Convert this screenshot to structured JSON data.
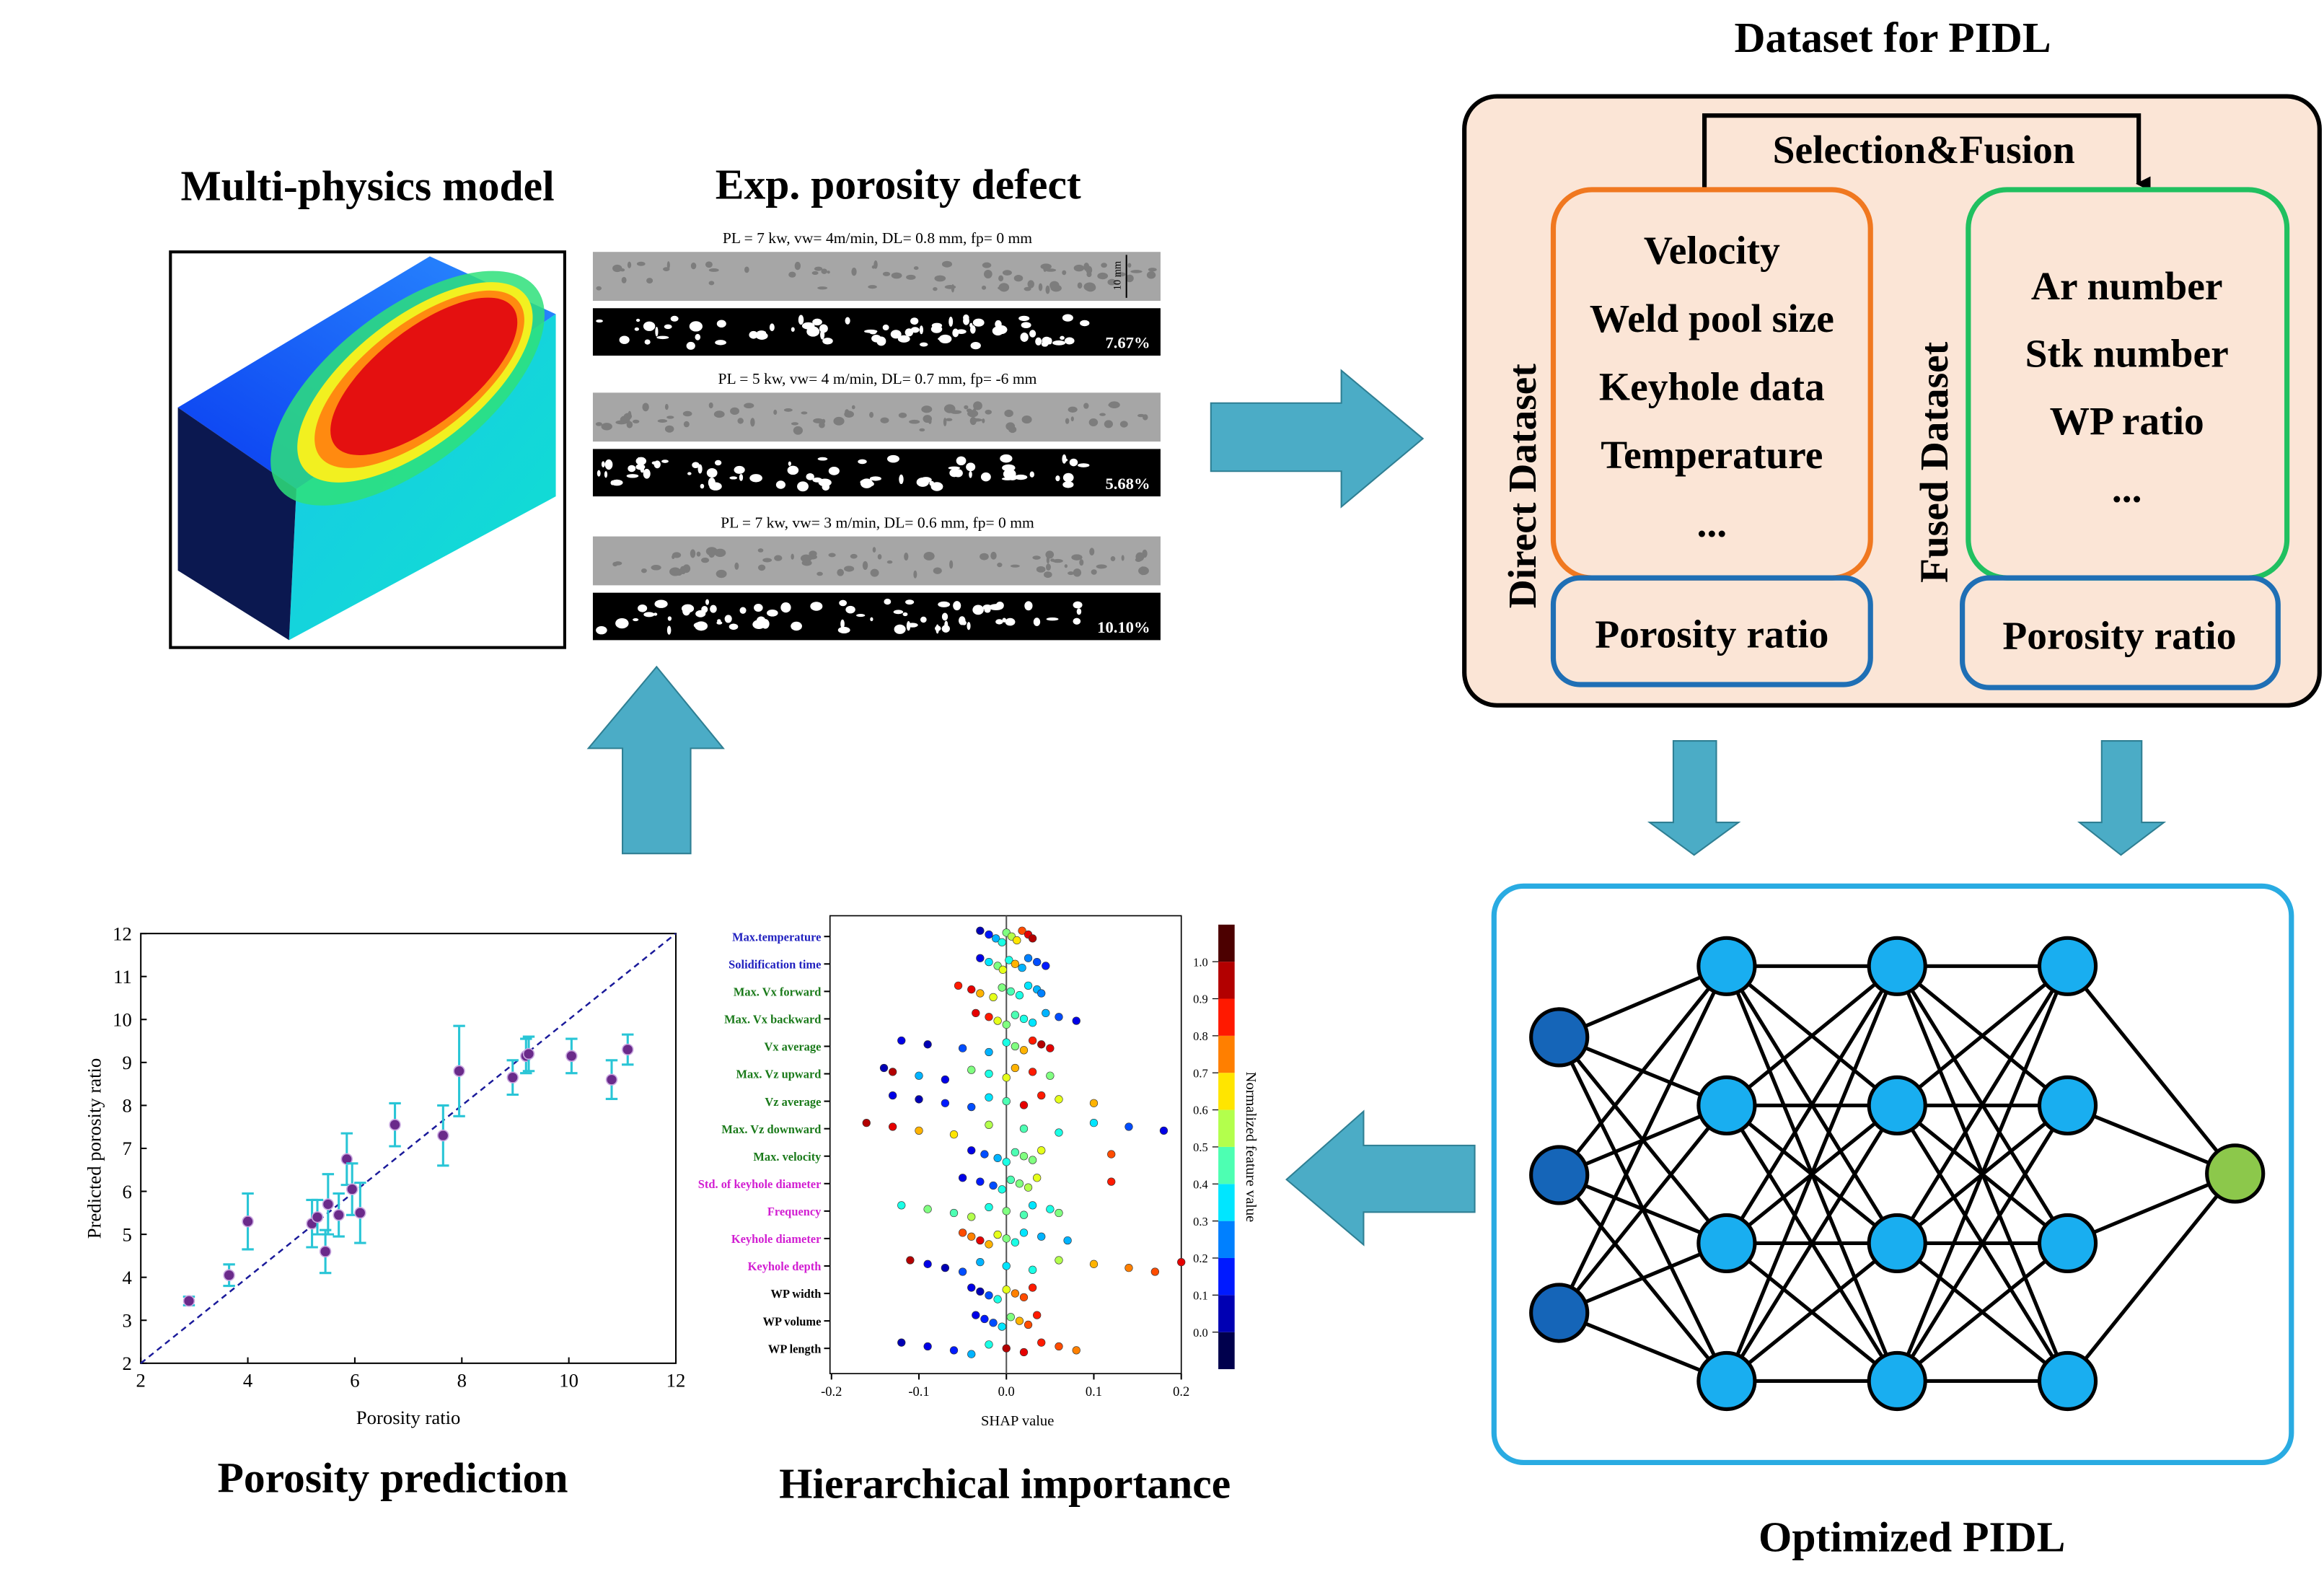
{
  "model": {
    "title": "Multi-physics model"
  },
  "experiment": {
    "title": "Exp. porosity defect",
    "scale_label": "10 mm",
    "samples": [
      {
        "caption": "PL = 7 kw, vw= 4m/min, DL= 0.8 mm, fp= 0 mm",
        "porosity": "7.67%"
      },
      {
        "caption": "PL = 5 kw, vw= 4 m/min, DL= 0.7 mm, fp= -6 mm",
        "porosity": "5.68%"
      },
      {
        "caption": "PL = 7 kw, vw= 3 m/min, DL= 0.6 mm, fp= 0 mm",
        "porosity": "10.10%"
      }
    ]
  },
  "dataset": {
    "title": "Dataset for PIDL",
    "link": "Selection&Fusion",
    "direct": {
      "label": "Direct Dataset",
      "features": [
        "Velocity",
        "Weld pool size",
        "Keyhole data",
        "Temperature",
        "..."
      ],
      "target": "Porosity ratio"
    },
    "fused": {
      "label": "Fused Dataset",
      "features": [
        "Ar number",
        "Stk number",
        "WP ratio",
        "..."
      ],
      "target": "Porosity ratio"
    }
  },
  "network": {
    "title": "Optimized PIDL"
  },
  "chart_data": [
    {
      "type": "scatter",
      "title": "Porosity prediction",
      "x_label": "Porosity ratio",
      "y_label": "Predicted porosity ratio",
      "x": [
        2.9,
        3.65,
        4.0,
        5.2,
        5.3,
        5.45,
        5.5,
        5.7,
        5.85,
        5.95,
        6.1,
        6.75,
        7.65,
        7.95,
        8.95,
        9.2,
        9.25,
        10.05,
        10.8,
        11.1
      ],
      "y": [
        3.45,
        4.05,
        5.3,
        5.25,
        5.4,
        4.6,
        5.7,
        5.45,
        6.75,
        6.05,
        5.5,
        7.55,
        7.3,
        8.8,
        8.65,
        9.15,
        9.2,
        9.15,
        8.6,
        9.3
      ],
      "errors": [
        0.1,
        0.25,
        0.65,
        0.55,
        0.4,
        0.5,
        0.7,
        0.5,
        0.6,
        0.6,
        0.7,
        0.5,
        0.7,
        1.05,
        0.4,
        0.4,
        0.4,
        0.4,
        0.45,
        0.35
      ],
      "color": "#6a2a8a",
      "error_color": "#29c5d6",
      "xlim": [
        2,
        12
      ],
      "ylim": [
        2,
        12
      ],
      "xticks": [
        2,
        4,
        6,
        8,
        10,
        12
      ],
      "yticks": [
        2,
        3,
        4,
        5,
        6,
        7,
        8,
        9,
        10,
        11,
        12
      ]
    },
    {
      "type": "beeswarm",
      "title": "Hierarchical importance",
      "x_label": "SHAP value",
      "categories": [
        "Max.temperature",
        "Solidification time",
        "Max. Vx forward",
        "Max. Vx backward",
        "Vx average",
        "Max. Vz upward",
        "Vz average",
        "Max. Vz downward",
        "Max. velocity",
        "Std. of keyhole diameter",
        "Frequency",
        "Keyhole diameter",
        "Keyhole depth",
        "WP width",
        "WP volume",
        "WP length"
      ],
      "category_colors": [
        "#1f1fbf",
        "#1f1fbf",
        "#1a7a1a",
        "#1a7a1a",
        "#1a7a1a",
        "#1a7a1a",
        "#1a7a1a",
        "#1a7a1a",
        "#1a7a1a",
        "#d21fd2",
        "#d21fd2",
        "#d21fd2",
        "#d21fd2",
        "#000000",
        "#000000",
        "#000000"
      ],
      "values": [
        [
          -0.03,
          -0.02,
          -0.012,
          -0.005,
          0,
          0.006,
          0.012,
          0.018,
          0.025,
          0.03
        ],
        [
          -0.03,
          -0.02,
          -0.01,
          -0.004,
          0.003,
          0.01,
          0.018,
          0.025,
          0.035,
          0.045
        ],
        [
          -0.055,
          -0.04,
          -0.03,
          -0.015,
          -0.005,
          0.005,
          0.015,
          0.025,
          0.035,
          0.04
        ],
        [
          -0.035,
          -0.02,
          -0.01,
          0,
          0.01,
          0.02,
          0.03,
          0.045,
          0.06,
          0.08
        ],
        [
          -0.12,
          -0.09,
          -0.05,
          -0.02,
          0,
          0.01,
          0.02,
          0.03,
          0.04,
          0.05
        ],
        [
          -0.14,
          -0.13,
          -0.1,
          -0.07,
          -0.04,
          -0.02,
          0,
          0.01,
          0.03,
          0.05
        ],
        [
          -0.13,
          -0.1,
          -0.07,
          -0.04,
          -0.02,
          0,
          0.02,
          0.04,
          0.06,
          0.1
        ],
        [
          -0.16,
          -0.13,
          -0.1,
          -0.06,
          -0.02,
          0.02,
          0.06,
          0.1,
          0.14,
          0.18
        ],
        [
          -0.04,
          -0.025,
          -0.01,
          0,
          0.01,
          0.02,
          0.03,
          0.04,
          0.12
        ],
        [
          -0.05,
          -0.03,
          -0.015,
          -0.005,
          0.005,
          0.015,
          0.025,
          0.035,
          0.12
        ],
        [
          -0.12,
          -0.09,
          -0.06,
          -0.04,
          -0.02,
          0,
          0.02,
          0.03,
          0.05,
          0.06
        ],
        [
          -0.05,
          -0.04,
          -0.03,
          -0.02,
          -0.01,
          0,
          0.01,
          0.02,
          0.04,
          0.07
        ],
        [
          -0.11,
          -0.09,
          -0.07,
          -0.05,
          -0.03,
          0,
          0.03,
          0.06,
          0.1,
          0.14,
          0.17,
          0.2
        ],
        [
          -0.04,
          -0.03,
          -0.02,
          -0.01,
          0,
          0.01,
          0.02,
          0.03
        ],
        [
          -0.035,
          -0.025,
          -0.015,
          -0.005,
          0.005,
          0.015,
          0.025,
          0.035
        ],
        [
          -0.12,
          -0.09,
          -0.06,
          -0.04,
          -0.02,
          0,
          0.02,
          0.04,
          0.06,
          0.08
        ]
      ],
      "feature_values": [
        [
          0.05,
          0.15,
          0.3,
          0.4,
          0.5,
          0.55,
          0.65,
          0.8,
          0.9,
          0.95
        ],
        [
          0.1,
          0.35,
          0.5,
          0.6,
          0.4,
          0.7,
          0.3,
          0.25,
          0.2,
          0.15
        ],
        [
          0.85,
          0.9,
          0.7,
          0.6,
          0.5,
          0.45,
          0.4,
          0.35,
          0.3,
          0.25
        ],
        [
          0.9,
          0.85,
          0.6,
          0.5,
          0.45,
          0.4,
          0.35,
          0.3,
          0.2,
          0.1
        ],
        [
          0.1,
          0.05,
          0.2,
          0.3,
          0.4,
          0.5,
          0.7,
          0.85,
          0.95,
          0.9
        ],
        [
          0.05,
          0.95,
          0.3,
          0.1,
          0.5,
          0.4,
          0.6,
          0.7,
          0.85,
          0.5
        ],
        [
          0.1,
          0.05,
          0.15,
          0.2,
          0.35,
          0.45,
          0.9,
          0.85,
          0.6,
          0.7
        ],
        [
          0.95,
          0.9,
          0.7,
          0.65,
          0.55,
          0.45,
          0.4,
          0.35,
          0.2,
          0.1
        ],
        [
          0.1,
          0.2,
          0.3,
          0.4,
          0.45,
          0.5,
          0.5,
          0.6,
          0.8
        ],
        [
          0.1,
          0.15,
          0.2,
          0.4,
          0.45,
          0.5,
          0.55,
          0.6,
          0.85
        ],
        [
          0.4,
          0.5,
          0.45,
          0.55,
          0.4,
          0.5,
          0.45,
          0.35,
          0.4,
          0.5
        ],
        [
          0.8,
          0.75,
          0.9,
          0.7,
          0.6,
          0.5,
          0.4,
          0.35,
          0.3,
          0.3
        ],
        [
          0.95,
          0.1,
          0.05,
          0.2,
          0.3,
          0.35,
          0.4,
          0.55,
          0.7,
          0.75,
          0.8,
          0.9
        ],
        [
          0.1,
          0.05,
          0.2,
          0.4,
          0.6,
          0.75,
          0.8,
          0.85
        ],
        [
          0.1,
          0.15,
          0.2,
          0.35,
          0.5,
          0.7,
          0.8,
          0.85
        ],
        [
          0.05,
          0.1,
          0.15,
          0.3,
          0.4,
          0.95,
          0.9,
          0.85,
          0.8,
          0.75
        ]
      ],
      "xlim": [
        -0.2,
        0.2
      ],
      "xticks": [
        -0.2,
        -0.1,
        {
          "value": 0,
          "label": "0.0"
        },
        0.1,
        0.2
      ],
      "colorbar_label": "Normalized feature value",
      "clim": [
        -0.1,
        1.1
      ],
      "cticks": [
        {
          "value": 0,
          "label": "0.0"
        },
        0.1,
        0.2,
        0.3,
        0.4,
        0.5,
        0.6,
        0.7,
        0.8,
        0.9,
        {
          "value": 1,
          "label": "1.0"
        }
      ]
    }
  ]
}
